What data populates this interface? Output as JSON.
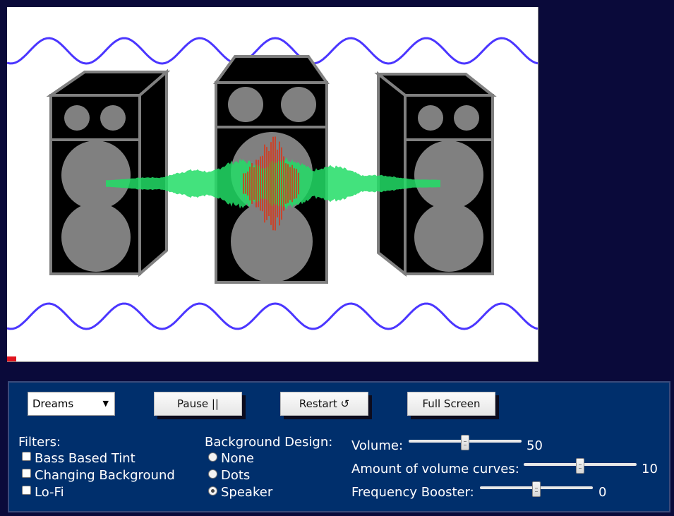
{
  "colors": {
    "page_bg": "#0a0a3a",
    "panel_bg": "#002f6c",
    "wave_line": "#4b36ff",
    "waveform_green": "#22dd66",
    "waveform_red": "#e03010",
    "speaker_grey": "#808080",
    "progress_red": "#e0141e"
  },
  "playback": {
    "progress_fraction": 0.017
  },
  "controls": {
    "song_select": {
      "value": "Dreams",
      "arrow": "▼"
    },
    "pause_label": "Pause ||",
    "restart_label": "Restart ↺",
    "fullscreen_label": "Full Screen"
  },
  "filters": {
    "heading": "Filters:",
    "options": [
      {
        "label": "Bass Based Tint",
        "checked": false
      },
      {
        "label": "Changing Background",
        "checked": false
      },
      {
        "label": "Lo-Fi",
        "checked": false
      }
    ]
  },
  "background_design": {
    "heading": "Background Design:",
    "options": [
      {
        "label": "None",
        "selected": false
      },
      {
        "label": "Dots",
        "selected": false
      },
      {
        "label": "Speaker",
        "selected": true
      }
    ]
  },
  "sliders": {
    "volume": {
      "label": "Volume:",
      "value": "50",
      "fraction": 0.5
    },
    "curves": {
      "label": "Amount of volume curves:",
      "value": "10",
      "fraction": 0.5
    },
    "booster": {
      "label": "Frequency Booster:",
      "value": "0",
      "fraction": 0.5
    }
  },
  "icons": [
    "dropdown-arrow-icon",
    "restart-icon",
    "pause-icon"
  ]
}
